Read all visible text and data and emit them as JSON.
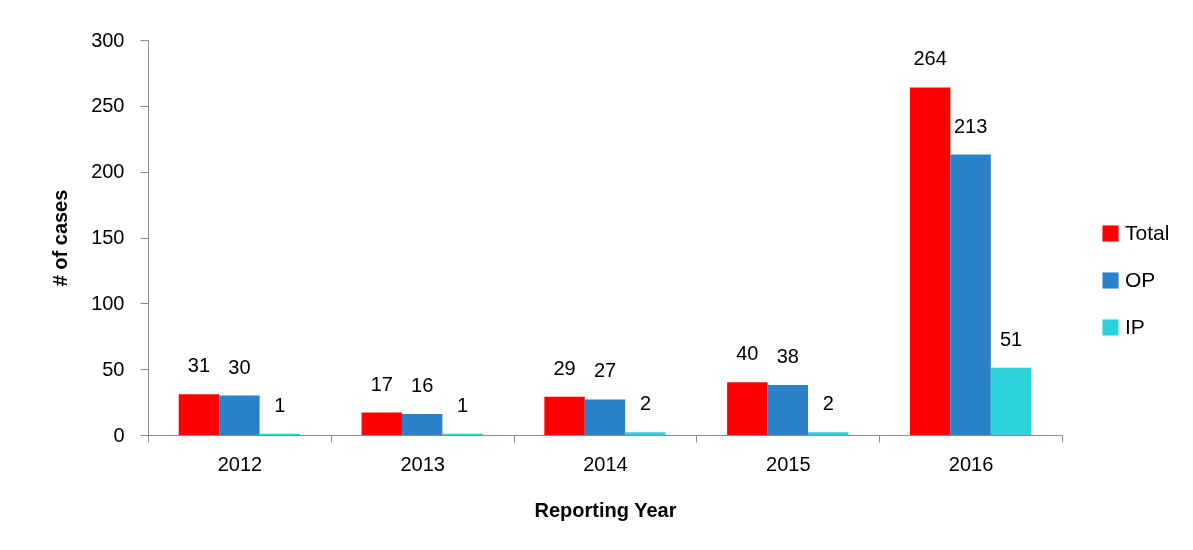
{
  "chart_data": {
    "type": "bar",
    "categories": [
      "2012",
      "2013",
      "2014",
      "2015",
      "2016"
    ],
    "series": [
      {
        "name": "Total",
        "color": "#ff0000",
        "values": [
          31,
          17,
          29,
          40,
          264
        ]
      },
      {
        "name": "OP",
        "color": "#2b82c9",
        "values": [
          30,
          16,
          27,
          38,
          213
        ]
      },
      {
        "name": "IP",
        "color": "#2ad2da",
        "values": [
          1,
          1,
          2,
          2,
          51
        ]
      }
    ],
    "xlabel": "Reporting Year",
    "ylabel": "# of cases",
    "ylim": [
      0,
      300
    ],
    "yticks": [
      0,
      50,
      100,
      150,
      200,
      250,
      300
    ],
    "data_labels": true,
    "legend": "right",
    "grid": false
  }
}
